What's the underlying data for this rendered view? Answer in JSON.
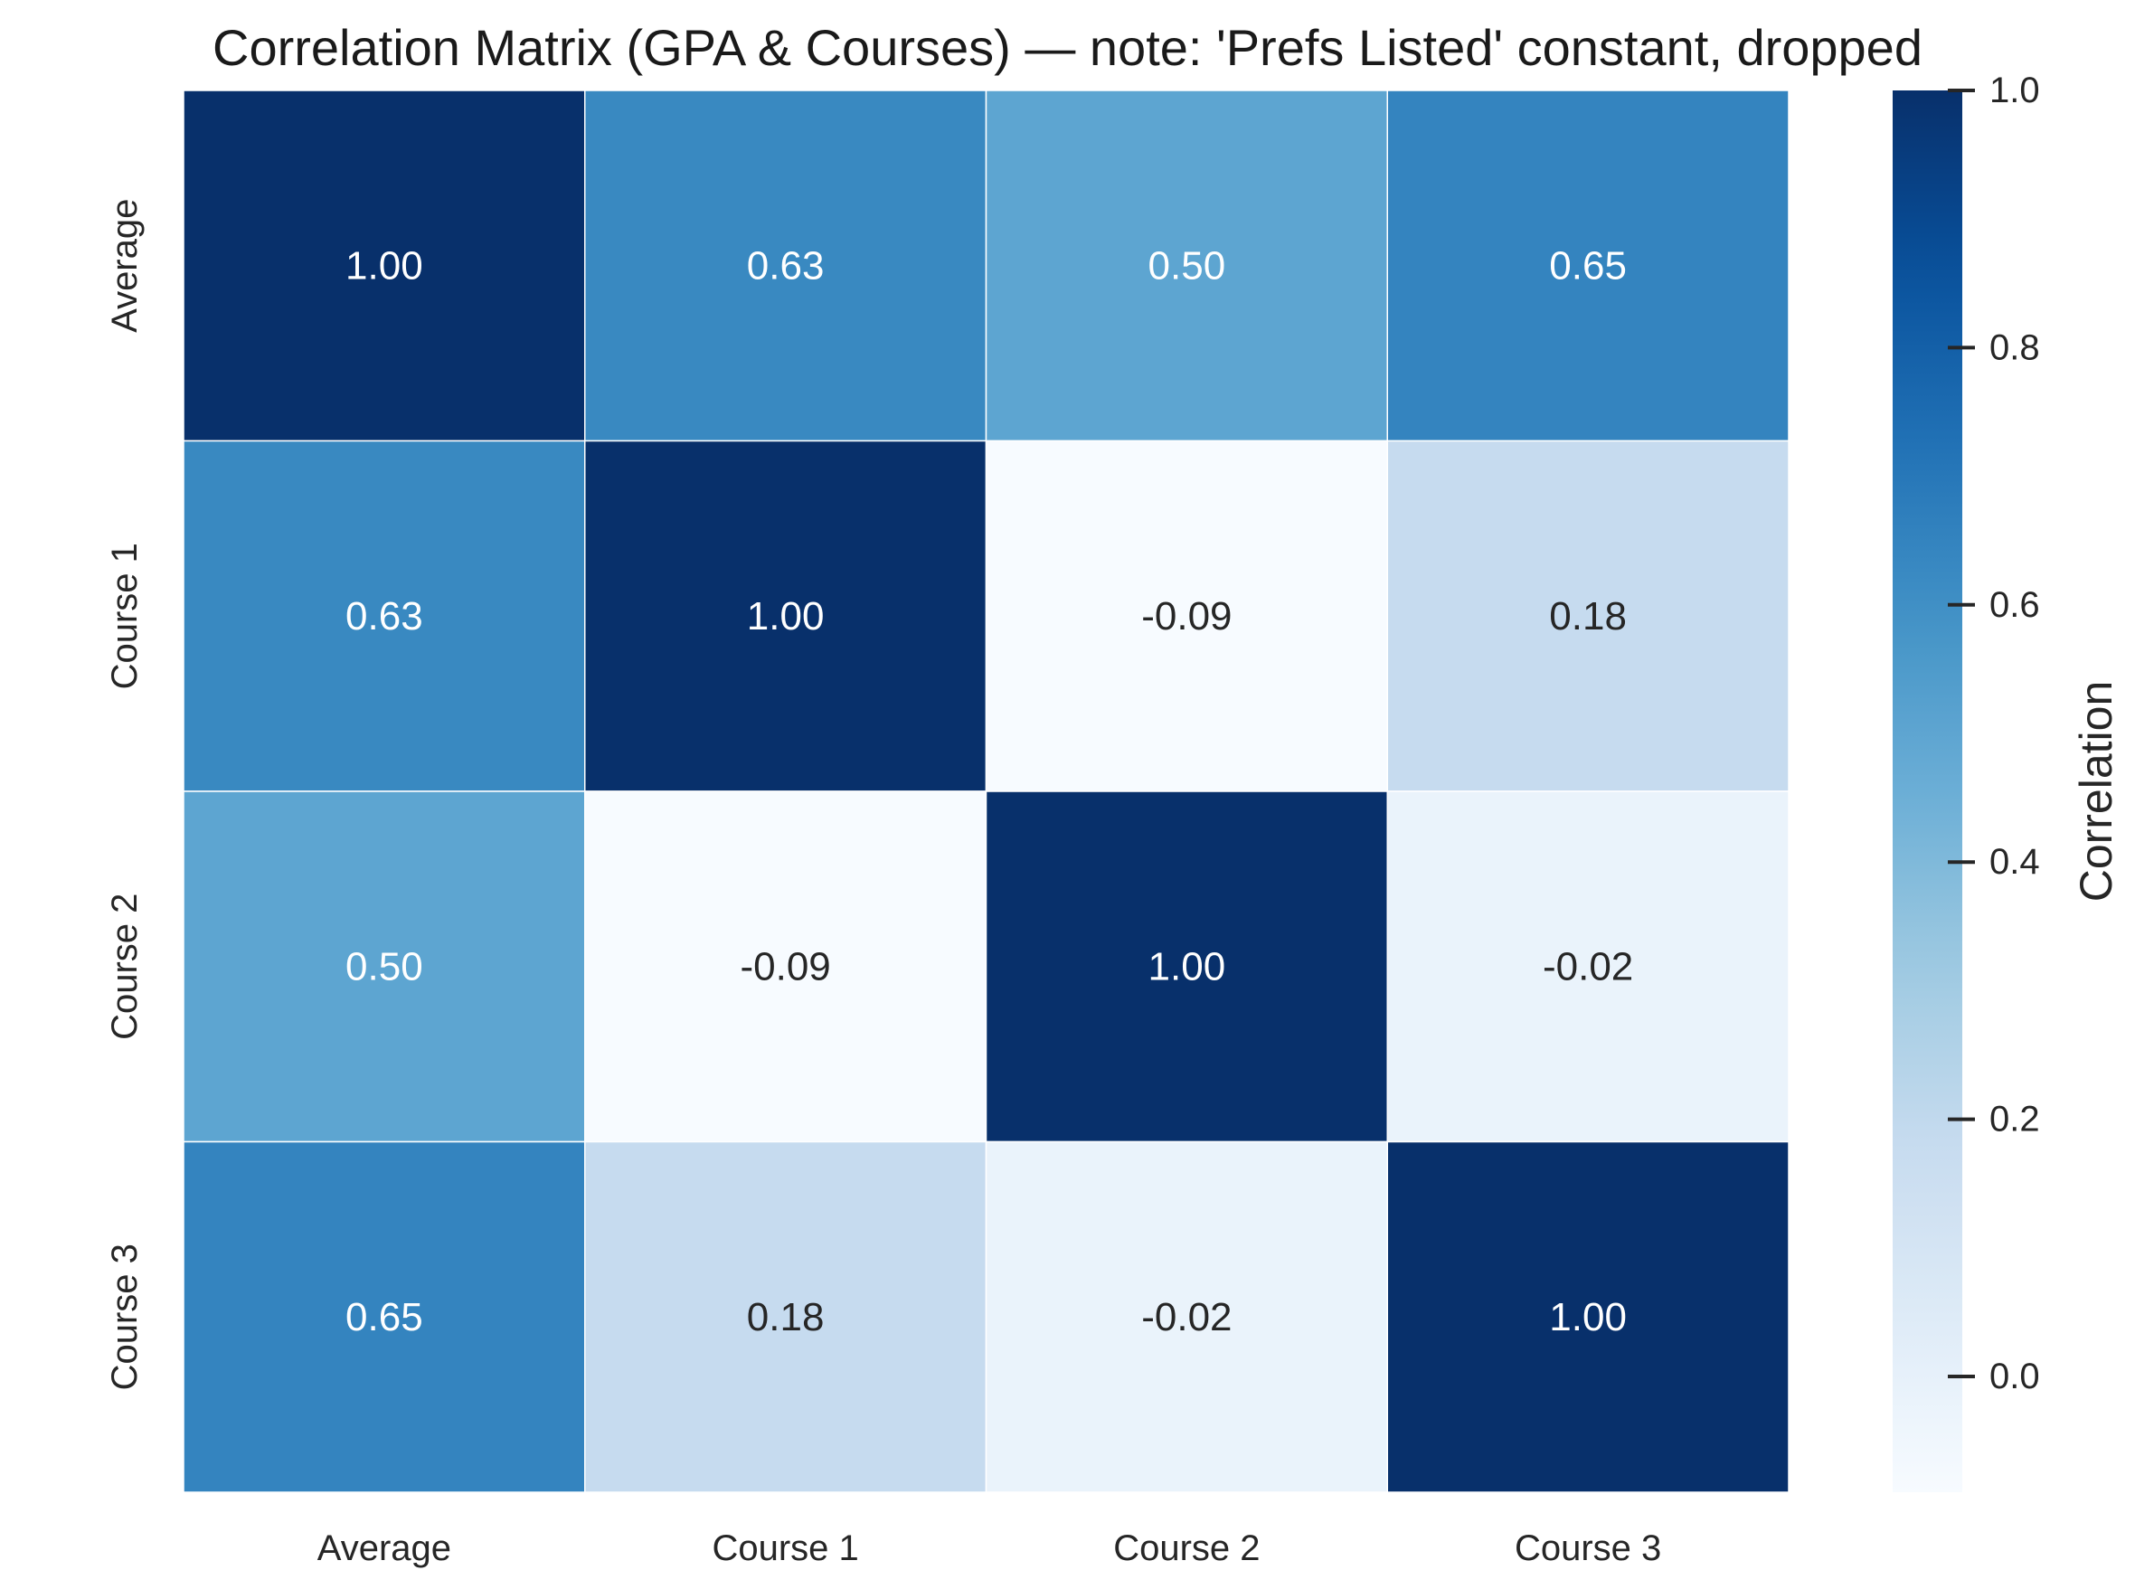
{
  "chart_data": {
    "type": "heatmap",
    "title": "Correlation Matrix (GPA & Courses) — note: 'Prefs Listed' constant, dropped",
    "rows": [
      "Average",
      "Course 1",
      "Course 2",
      "Course 3"
    ],
    "columns": [
      "Average",
      "Course 1",
      "Course 2",
      "Course 3"
    ],
    "values": [
      [
        1.0,
        0.63,
        0.5,
        0.65
      ],
      [
        0.63,
        1.0,
        -0.09,
        0.18
      ],
      [
        0.5,
        -0.09,
        1.0,
        -0.02
      ],
      [
        0.65,
        0.18,
        -0.02,
        1.0
      ]
    ],
    "cell_labels": [
      [
        "1.00",
        "0.63",
        "0.50",
        "0.65"
      ],
      [
        "0.63",
        "1.00",
        "-0.09",
        "0.18"
      ],
      [
        "0.50",
        "-0.09",
        "1.00",
        "-0.02"
      ],
      [
        "0.65",
        "0.18",
        "-0.02",
        "1.00"
      ]
    ],
    "colormap": "Blues",
    "colorbar": {
      "label": "Correlation",
      "range": [
        -0.09,
        1.0
      ],
      "ticks": [
        0.0,
        0.2,
        0.4,
        0.6,
        0.8,
        1.0
      ],
      "tick_labels": [
        "0.0",
        "0.2",
        "0.4",
        "0.6",
        "0.8",
        "1.0"
      ]
    },
    "grid_line_color": "#ffffff"
  }
}
